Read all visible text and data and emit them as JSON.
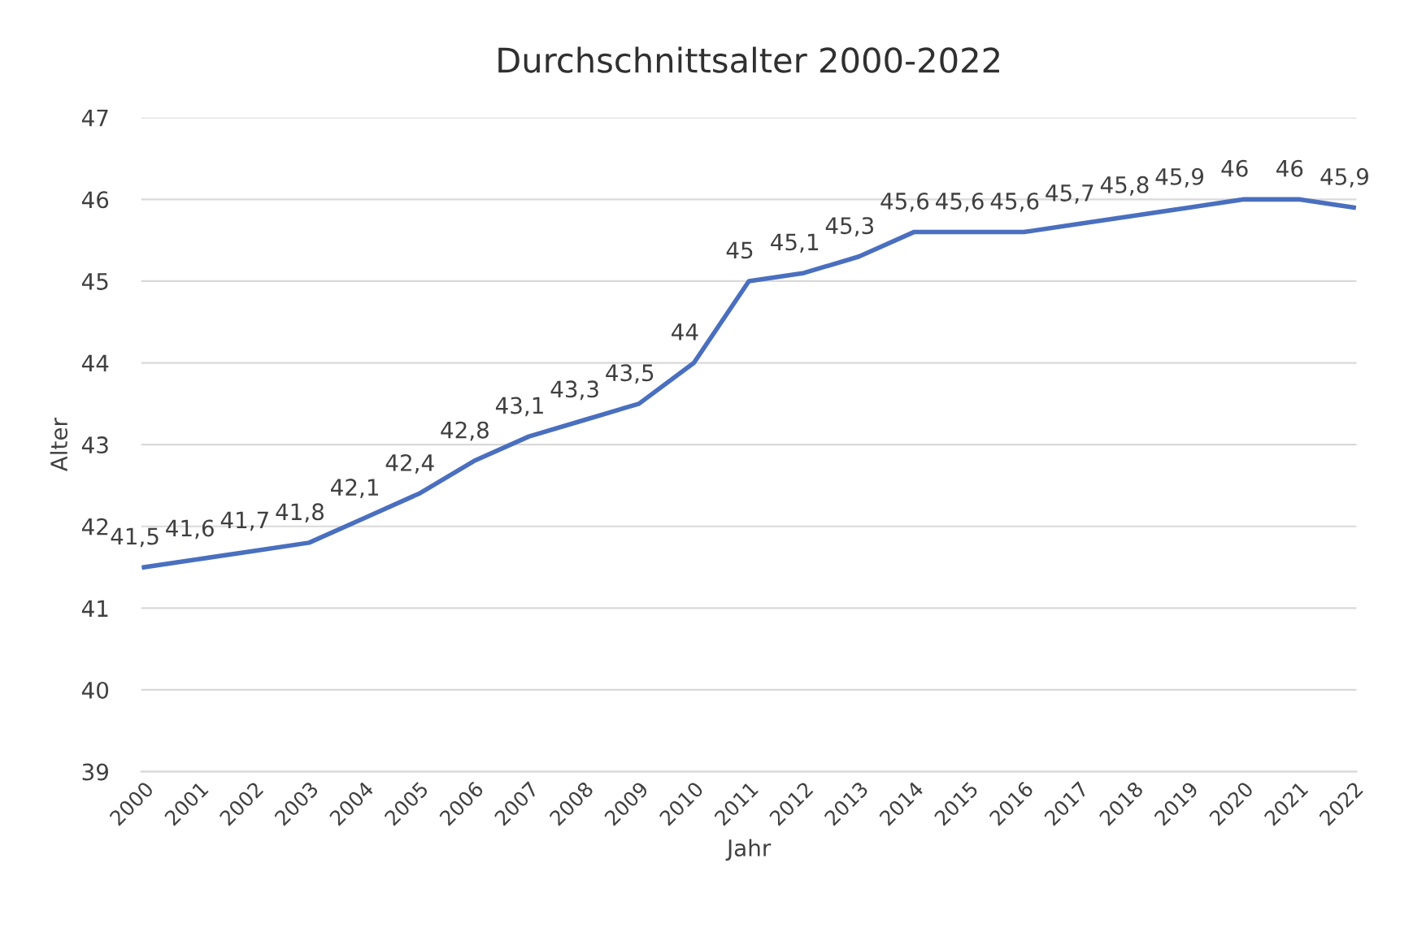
{
  "chart_data": {
    "type": "line",
    "title": "Durchschnittsalter 2000-2022",
    "xlabel": "Jahr",
    "ylabel": "Alter",
    "categories": [
      "2000",
      "2001",
      "2002",
      "2003",
      "2004",
      "2005",
      "2006",
      "2007",
      "2008",
      "2009",
      "2010",
      "2011",
      "2012",
      "2013",
      "2014",
      "2015",
      "2016",
      "2017",
      "2018",
      "2019",
      "2020",
      "2021",
      "2022"
    ],
    "series": [
      {
        "color": "#4a6fbf",
        "values": [
          41.5,
          41.6,
          41.7,
          41.8,
          42.1,
          42.4,
          42.8,
          43.1,
          43.3,
          43.5,
          44,
          45,
          45.1,
          45.3,
          45.6,
          45.6,
          45.6,
          45.7,
          45.8,
          45.9,
          46,
          46,
          45.9
        ],
        "value_labels": [
          "41,5",
          "41,6",
          "41,7",
          "41,8",
          "42,1",
          "42,4",
          "42,8",
          "43,1",
          "43,3",
          "43,5",
          "44",
          "45",
          "45,1",
          "45,3",
          "45,6",
          "45,6",
          "45,6",
          "45,7",
          "45,8",
          "45,9",
          "46",
          "46",
          "45,9"
        ]
      }
    ],
    "ylim": [
      39,
      47
    ],
    "yticks": [
      39,
      40,
      41,
      42,
      43,
      44,
      45,
      46,
      47
    ],
    "grid": "y",
    "marker": "none",
    "line_style": "solid",
    "legend": false
  }
}
